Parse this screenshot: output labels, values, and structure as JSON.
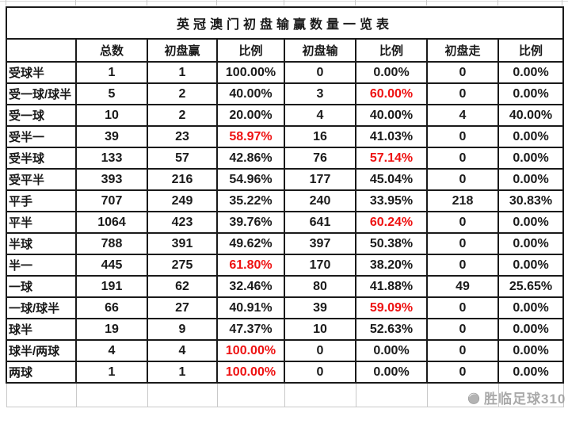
{
  "title": "英冠澳门初盘输赢数量一览表",
  "colors": {
    "text": "#1a1a1a",
    "highlight_red": "#ee1111",
    "border": "#1a1a1a",
    "light_gridline": "#c9c9c9",
    "watermark_gray": "#9b9b9b",
    "background": "#ffffff"
  },
  "watermark": {
    "text": "胜临足球310",
    "icon": "football-logo-icon"
  },
  "chart_data": {
    "type": "table",
    "title": "英冠澳门初盘输赢数量一览表",
    "columns": [
      "",
      "总数",
      "初盘赢",
      "比例",
      "初盘输",
      "比例",
      "初盘走",
      "比例"
    ],
    "rows": [
      {
        "cells": [
          "受球半",
          "1",
          "1",
          "100.00%",
          "0",
          "0.00%",
          "0",
          "0.00%"
        ],
        "red_cols": []
      },
      {
        "cells": [
          "受一球/球半",
          "5",
          "2",
          "40.00%",
          "3",
          "60.00%",
          "0",
          "0.00%"
        ],
        "red_cols": [
          5
        ]
      },
      {
        "cells": [
          "受一球",
          "10",
          "2",
          "20.00%",
          "4",
          "40.00%",
          "4",
          "40.00%"
        ],
        "red_cols": []
      },
      {
        "cells": [
          "受半一",
          "39",
          "23",
          "58.97%",
          "16",
          "41.03%",
          "0",
          "0.00%"
        ],
        "red_cols": [
          3
        ]
      },
      {
        "cells": [
          "受半球",
          "133",
          "57",
          "42.86%",
          "76",
          "57.14%",
          "0",
          "0.00%"
        ],
        "red_cols": [
          5
        ]
      },
      {
        "cells": [
          "受平半",
          "393",
          "216",
          "54.96%",
          "177",
          "45.04%",
          "0",
          "0.00%"
        ],
        "red_cols": []
      },
      {
        "cells": [
          "平手",
          "707",
          "249",
          "35.22%",
          "240",
          "33.95%",
          "218",
          "30.83%"
        ],
        "red_cols": []
      },
      {
        "cells": [
          "平半",
          "1064",
          "423",
          "39.76%",
          "641",
          "60.24%",
          "0",
          "0.00%"
        ],
        "red_cols": [
          5
        ]
      },
      {
        "cells": [
          "半球",
          "788",
          "391",
          "49.62%",
          "397",
          "50.38%",
          "0",
          "0.00%"
        ],
        "red_cols": []
      },
      {
        "cells": [
          "半一",
          "445",
          "275",
          "61.80%",
          "170",
          "38.20%",
          "0",
          "0.00%"
        ],
        "red_cols": [
          3
        ]
      },
      {
        "cells": [
          "一球",
          "191",
          "62",
          "32.46%",
          "80",
          "41.88%",
          "49",
          "25.65%"
        ],
        "red_cols": []
      },
      {
        "cells": [
          "一球/球半",
          "66",
          "27",
          "40.91%",
          "39",
          "59.09%",
          "0",
          "0.00%"
        ],
        "red_cols": [
          5
        ]
      },
      {
        "cells": [
          "球半",
          "19",
          "9",
          "47.37%",
          "10",
          "52.63%",
          "0",
          "0.00%"
        ],
        "red_cols": []
      },
      {
        "cells": [
          "球半/两球",
          "4",
          "4",
          "100.00%",
          "0",
          "0.00%",
          "0",
          "0.00%"
        ],
        "red_cols": [
          3
        ]
      },
      {
        "cells": [
          "两球",
          "1",
          "1",
          "100.00%",
          "0",
          "0.00%",
          "0",
          "0.00%"
        ],
        "red_cols": [
          3
        ]
      }
    ]
  }
}
